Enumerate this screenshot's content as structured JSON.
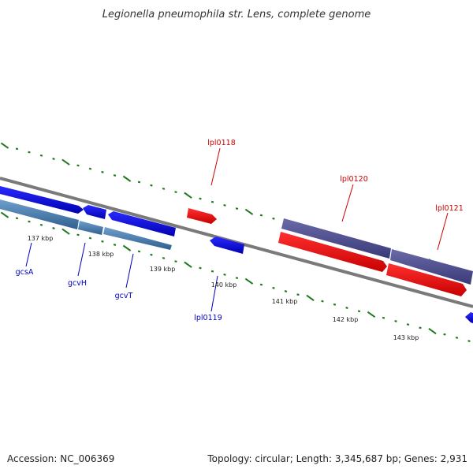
{
  "title": "Legionella pneumophila str. Lens, complete genome",
  "footer": {
    "accession": "Accession: NC_006369",
    "summary": "Topology: circular; Length: 3,345,687 bp; Genes: 2,931"
  },
  "colors": {
    "backbone": "#808080",
    "tick": "#1f7a1f",
    "forward_gene": "#ff0000",
    "reverse_gene": "#0000ee",
    "forward_cds": "#4a4a8f",
    "reverse_cds": "#4a7fb0",
    "label_forward": "#cc0000",
    "label_reverse": "#0000bb"
  },
  "axis_labels": [
    "137 kbp",
    "138 kbp",
    "139 kbp",
    "140 kbp",
    "141 kbp",
    "142 kbp",
    "143 kbp"
  ],
  "gene_labels": {
    "gcsA": "gcsA",
    "gcvH": "gcvH",
    "gcvT": "gcvT",
    "lpl0118": "lpl0118",
    "lpl0119": "lpl0119",
    "lpl0120": "lpl0120",
    "lpl0121": "lpl0121"
  }
}
